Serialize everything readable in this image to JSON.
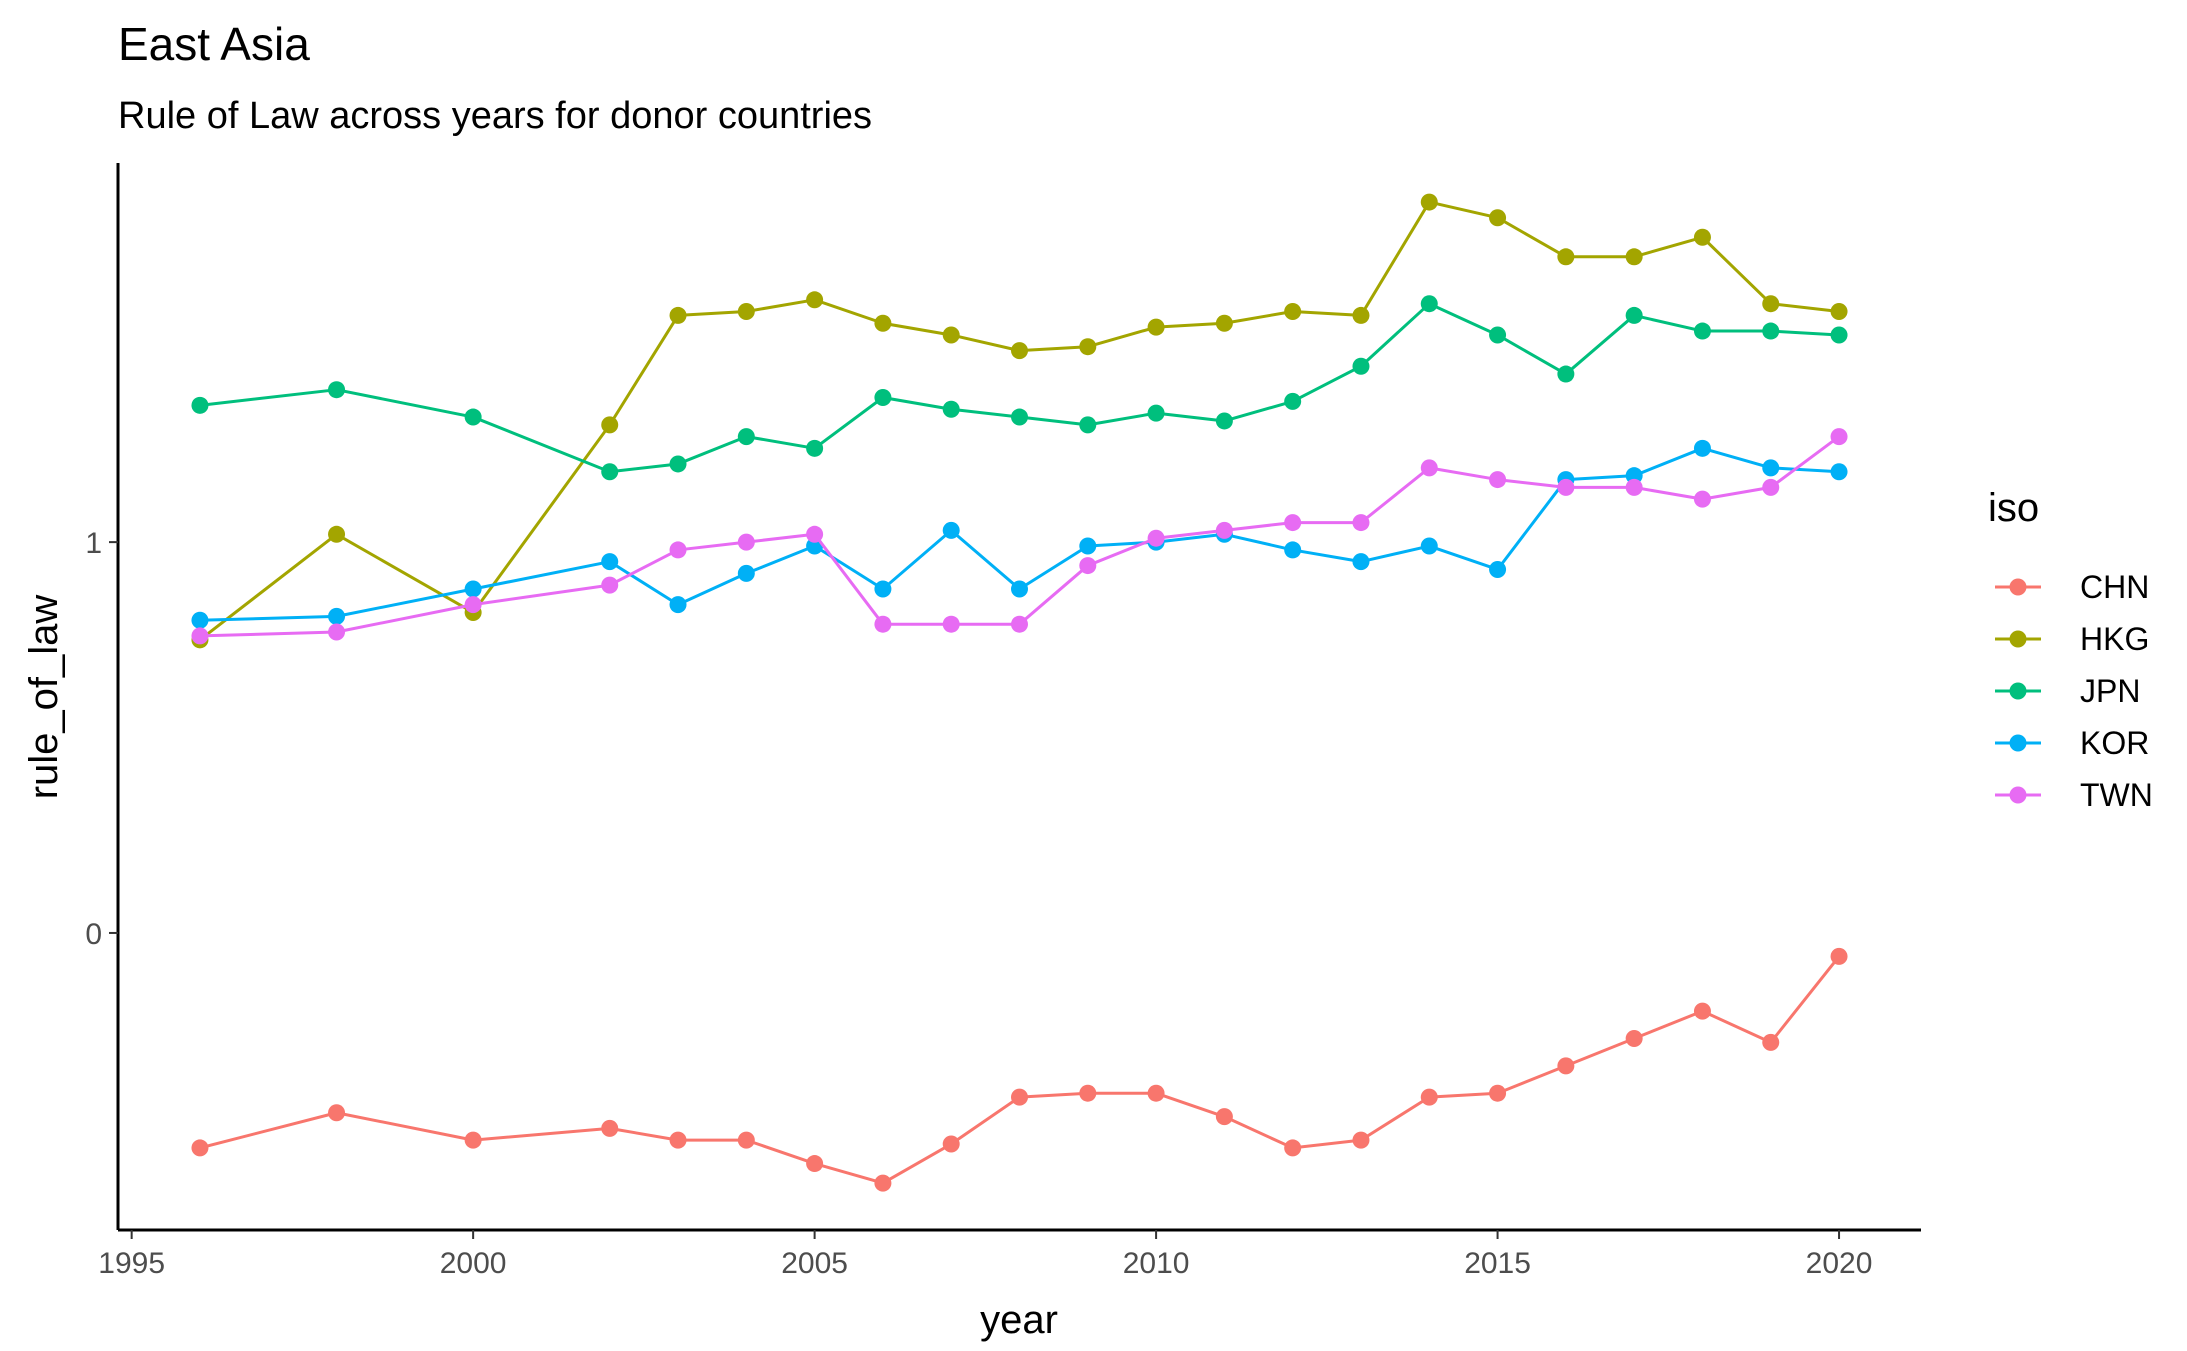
{
  "chart_data": {
    "type": "line",
    "title": "East Asia",
    "subtitle": "Rule of Law across years for donor countries",
    "xlabel": "year",
    "ylabel": "rule_of_law",
    "xlim": [
      1994.8,
      2021.2
    ],
    "ylim": [
      -0.76,
      1.97
    ],
    "x_ticks": [
      1995,
      2000,
      2005,
      2010,
      2015,
      2020
    ],
    "y_ticks": [
      0,
      1
    ],
    "grid": false,
    "legend": {
      "title": "iso",
      "position": "right"
    },
    "x": [
      1996,
      1998,
      2000,
      2002,
      2003,
      2004,
      2005,
      2006,
      2007,
      2008,
      2009,
      2010,
      2011,
      2012,
      2013,
      2014,
      2015,
      2016,
      2017,
      2018,
      2019,
      2020
    ],
    "series": [
      {
        "name": "CHN",
        "color": "#F8766D",
        "values": [
          -0.55,
          -0.46,
          -0.53,
          -0.5,
          -0.53,
          -0.53,
          -0.59,
          -0.64,
          -0.54,
          -0.42,
          -0.41,
          -0.41,
          -0.47,
          -0.55,
          -0.53,
          -0.42,
          -0.41,
          -0.34,
          -0.27,
          -0.2,
          -0.28,
          -0.06
        ]
      },
      {
        "name": "HKG",
        "color": "#A3A500",
        "values": [
          0.75,
          1.02,
          0.82,
          1.3,
          1.58,
          1.59,
          1.62,
          1.56,
          1.53,
          1.49,
          1.5,
          1.55,
          1.56,
          1.59,
          1.58,
          1.87,
          1.83,
          1.73,
          1.73,
          1.78,
          1.61,
          1.59
        ]
      },
      {
        "name": "JPN",
        "color": "#00BF7D",
        "values": [
          1.35,
          1.39,
          1.32,
          1.18,
          1.2,
          1.27,
          1.24,
          1.37,
          1.34,
          1.32,
          1.3,
          1.33,
          1.31,
          1.36,
          1.45,
          1.61,
          1.53,
          1.43,
          1.58,
          1.54,
          1.54,
          1.53
        ]
      },
      {
        "name": "KOR",
        "color": "#00B0F6",
        "values": [
          0.8,
          0.81,
          0.88,
          0.95,
          0.84,
          0.92,
          0.99,
          0.88,
          1.03,
          0.88,
          0.99,
          1.0,
          1.02,
          0.98,
          0.95,
          0.99,
          0.93,
          1.16,
          1.17,
          1.24,
          1.19,
          1.18
        ]
      },
      {
        "name": "TWN",
        "color": "#E76BF3",
        "values": [
          0.76,
          0.77,
          0.84,
          0.89,
          0.98,
          1.0,
          1.02,
          0.79,
          0.79,
          0.79,
          0.94,
          1.01,
          1.03,
          1.05,
          1.05,
          1.19,
          1.16,
          1.14,
          1.14,
          1.11,
          1.14,
          1.27
        ]
      }
    ]
  }
}
